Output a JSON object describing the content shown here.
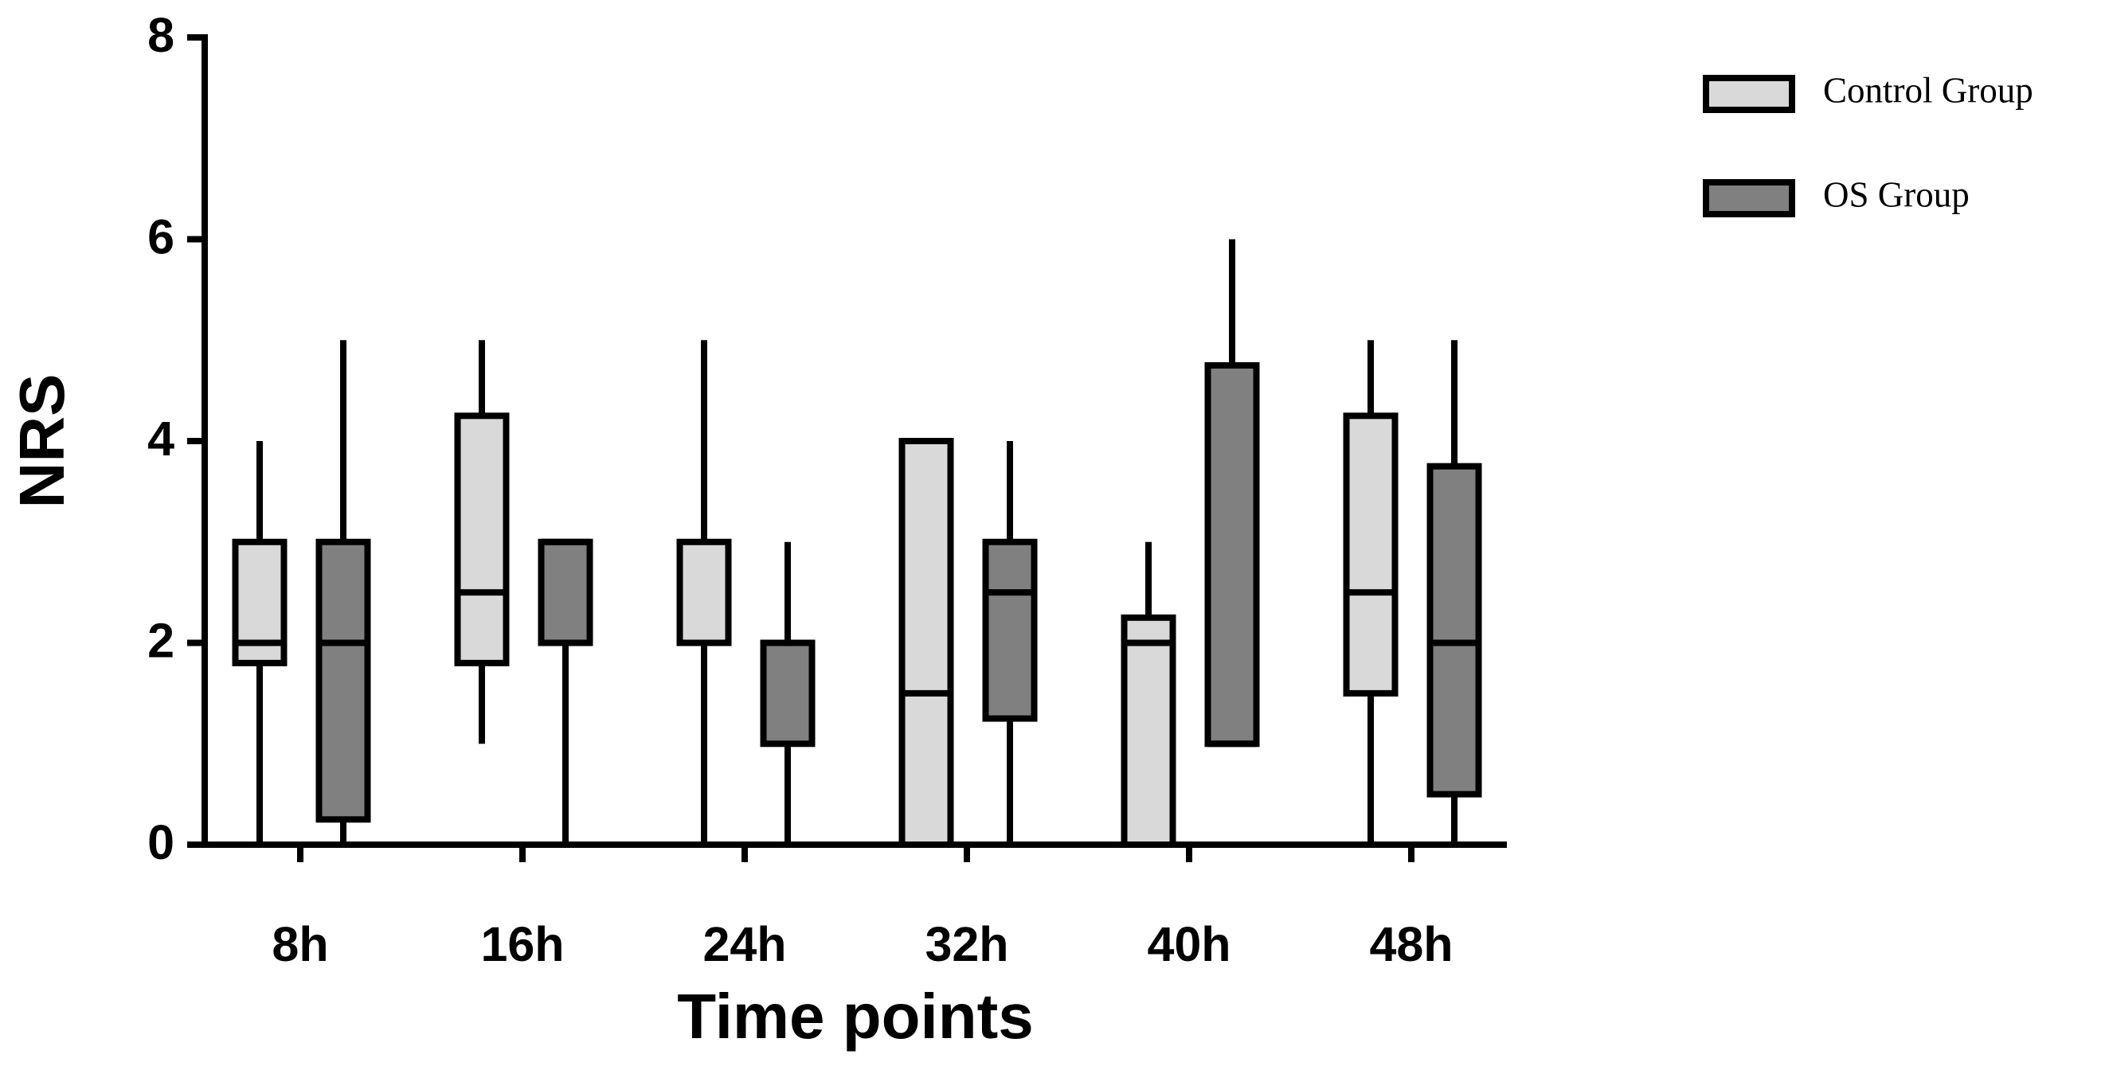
{
  "chart_data": {
    "type": "box",
    "x_label": "Time points",
    "y_label": "NRS",
    "categories": [
      "8h",
      "16h",
      "24h",
      "32h",
      "40h",
      "48h"
    ],
    "series": [
      {
        "name": "Control Group",
        "color": "#d9d9d9",
        "min": [
          0,
          1,
          0,
          0,
          0,
          0
        ],
        "q1": [
          1.8,
          1.8,
          2,
          0,
          0,
          1.5
        ],
        "median": [
          2,
          2.5,
          2,
          1.5,
          2,
          2.5
        ],
        "q3": [
          3,
          4.25,
          3,
          4,
          2.25,
          4.25
        ],
        "max": [
          4,
          5,
          5,
          4,
          3,
          5
        ]
      },
      {
        "name": "OS Group",
        "color": "#808080",
        "min": [
          0,
          0,
          0,
          0,
          1,
          0
        ],
        "q1": [
          0.25,
          2,
          1,
          1.25,
          1,
          0.5
        ],
        "median": [
          2,
          3,
          2,
          2.5,
          1,
          2
        ],
        "q3": [
          3,
          3,
          2,
          3,
          4.75,
          3.75
        ],
        "max": [
          5,
          3,
          3,
          4,
          6,
          5
        ]
      }
    ],
    "ylim": [
      0,
      8
    ],
    "yticks": [
      0,
      2,
      4,
      6,
      8
    ],
    "legend": "top-right"
  }
}
